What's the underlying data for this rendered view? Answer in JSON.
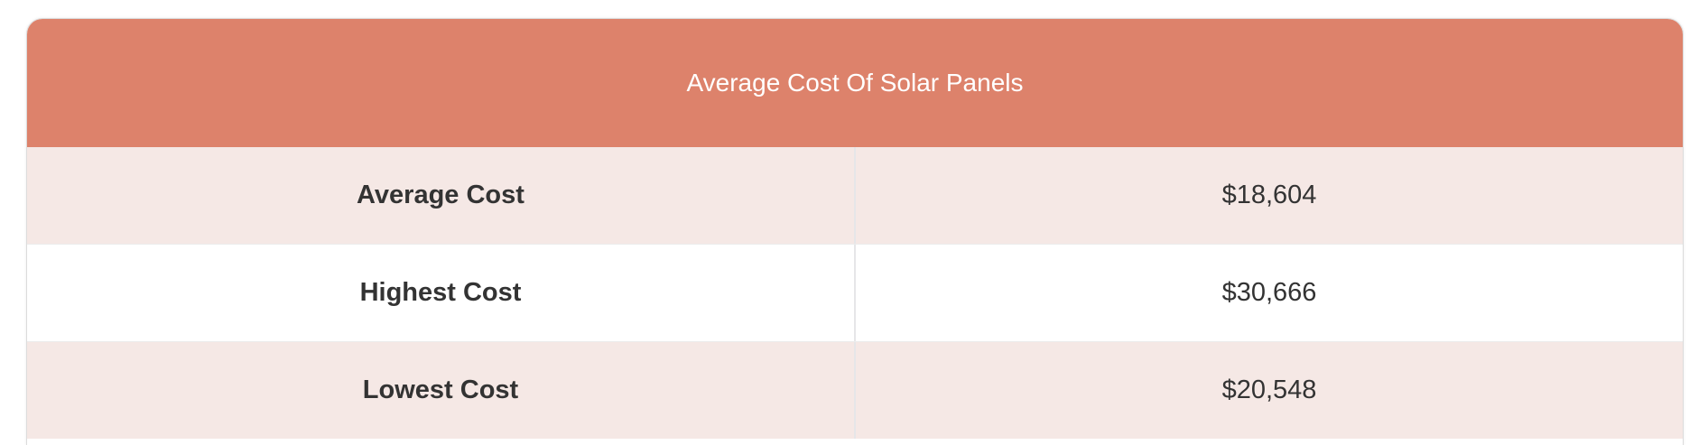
{
  "table": {
    "title": "Average Cost Of Solar Panels",
    "rows": [
      {
        "label": "Average Cost",
        "value": "$18,604"
      },
      {
        "label": "Highest Cost",
        "value": "$30,666"
      },
      {
        "label": "Lowest Cost",
        "value": "$20,548"
      }
    ]
  },
  "colors": {
    "header_background": "#dd826b",
    "shaded_row": "#f5e8e5",
    "plain_row": "#ffffff",
    "text": "#333333"
  }
}
